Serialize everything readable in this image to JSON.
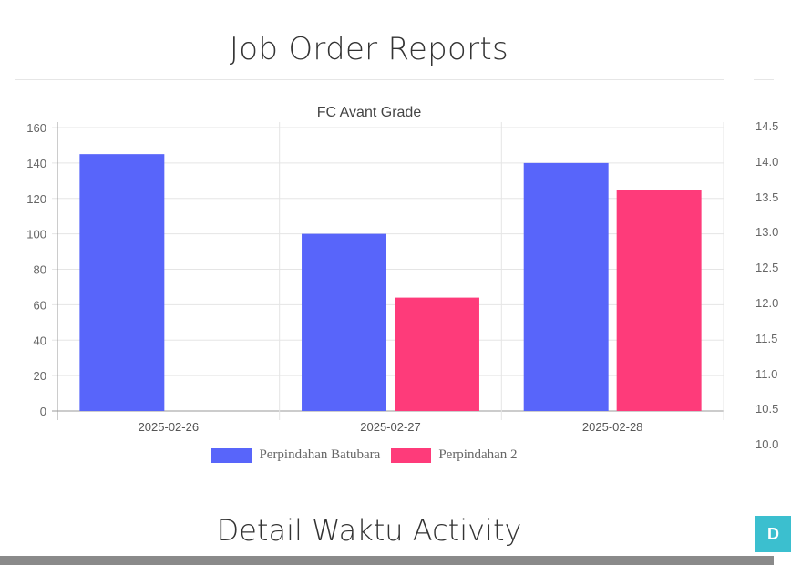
{
  "page": {
    "title": "Job Order Reports",
    "section_title": "Detail Waktu Activity",
    "button_label": "D"
  },
  "right_axis_ticks": [
    "14.5",
    "14.0",
    "13.5",
    "13.0",
    "12.5",
    "12.0",
    "11.5",
    "11.0",
    "10.5",
    "10.0"
  ],
  "chart_data": {
    "type": "bar",
    "title": "FC Avant Grade",
    "categories": [
      "2025-02-26",
      "2025-02-27",
      "2025-02-28"
    ],
    "series": [
      {
        "name": "Perpindahan Batubara",
        "values": [
          145,
          100,
          140
        ],
        "color": "#5865fa"
      },
      {
        "name": "Perpindahan 2",
        "values": [
          0,
          64,
          125
        ],
        "color": "#fe3b7a"
      }
    ],
    "ylim": [
      0,
      160
    ],
    "yticks": [
      0,
      20,
      40,
      60,
      80,
      100,
      120,
      140,
      160
    ],
    "grid": true,
    "legend": "bottom"
  }
}
